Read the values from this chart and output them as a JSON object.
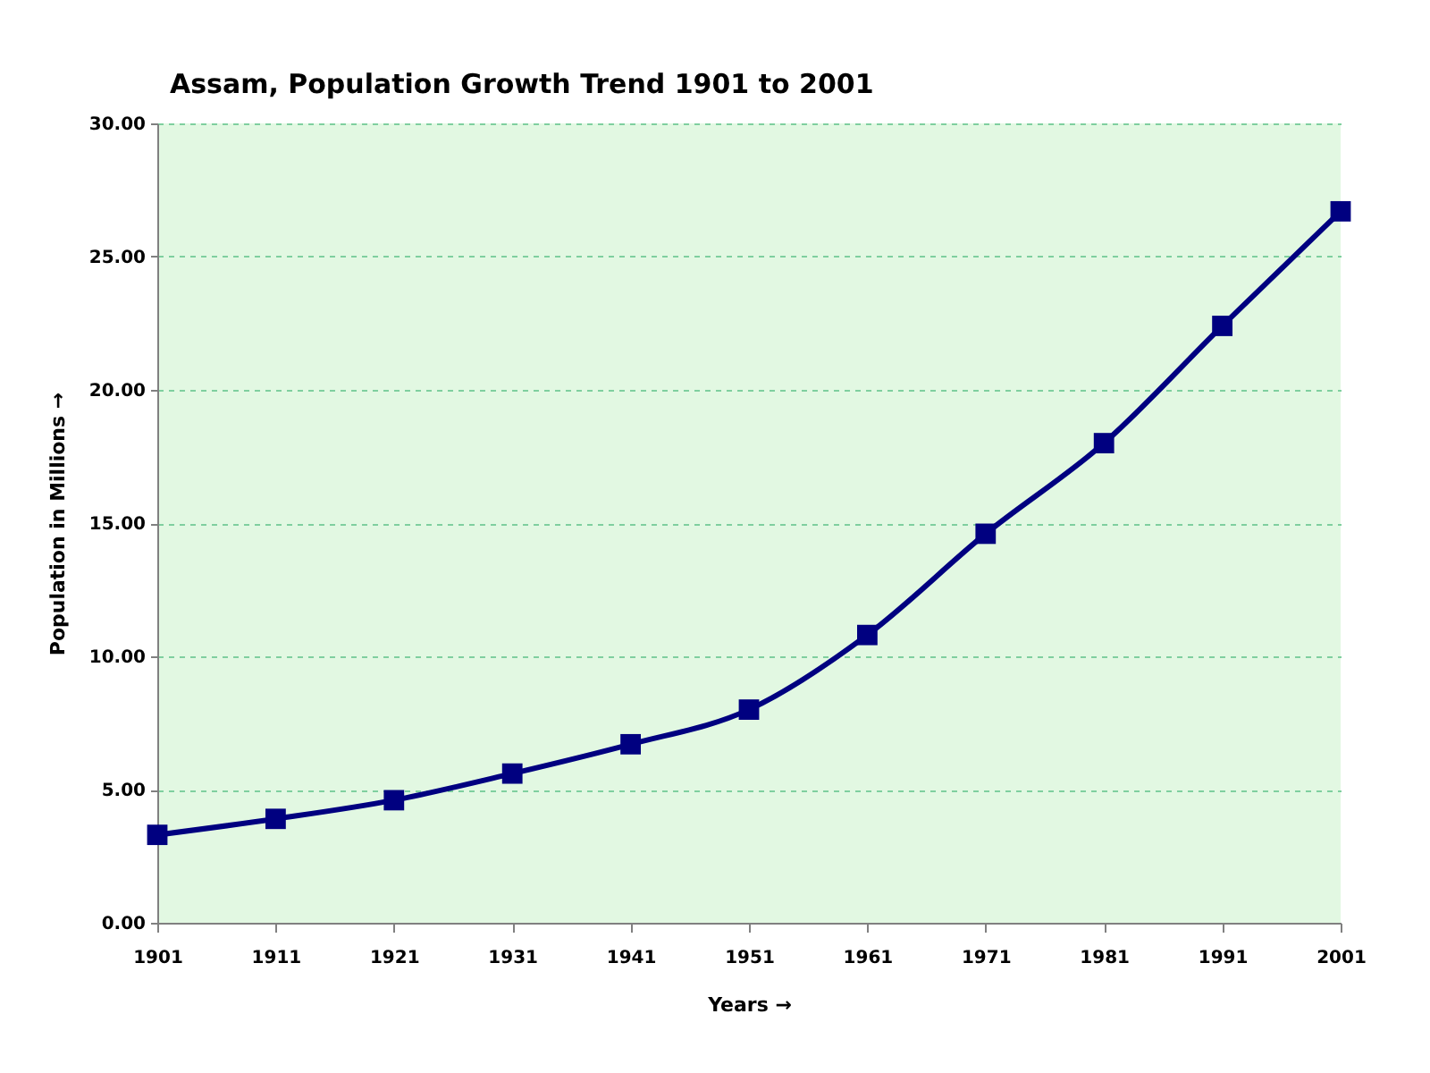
{
  "chart_data": {
    "type": "line",
    "title": "Assam, Population Growth Trend 1901 to 2001",
    "xlabel": "Years →",
    "ylabel": "Population in Millions →",
    "categories": [
      "1901",
      "1911",
      "1921",
      "1931",
      "1941",
      "1951",
      "1961",
      "1971",
      "1981",
      "1991",
      "2001"
    ],
    "values": [
      3.3,
      3.9,
      4.6,
      5.6,
      6.7,
      8.0,
      10.8,
      14.6,
      18.0,
      22.4,
      26.7
    ],
    "color": "#000080",
    "ylim": [
      0,
      30
    ],
    "yticks": [
      {
        "value": 0,
        "label": "0.00"
      },
      {
        "value": 5,
        "label": "5.00"
      },
      {
        "value": 10,
        "label": "10.00"
      },
      {
        "value": 15,
        "label": "15.00"
      },
      {
        "value": 20,
        "label": "20.00"
      },
      {
        "value": 25,
        "label": "25.00"
      },
      {
        "value": 30,
        "label": "30.00"
      }
    ],
    "grid": "y",
    "marker": "square",
    "line_style": "solid"
  }
}
